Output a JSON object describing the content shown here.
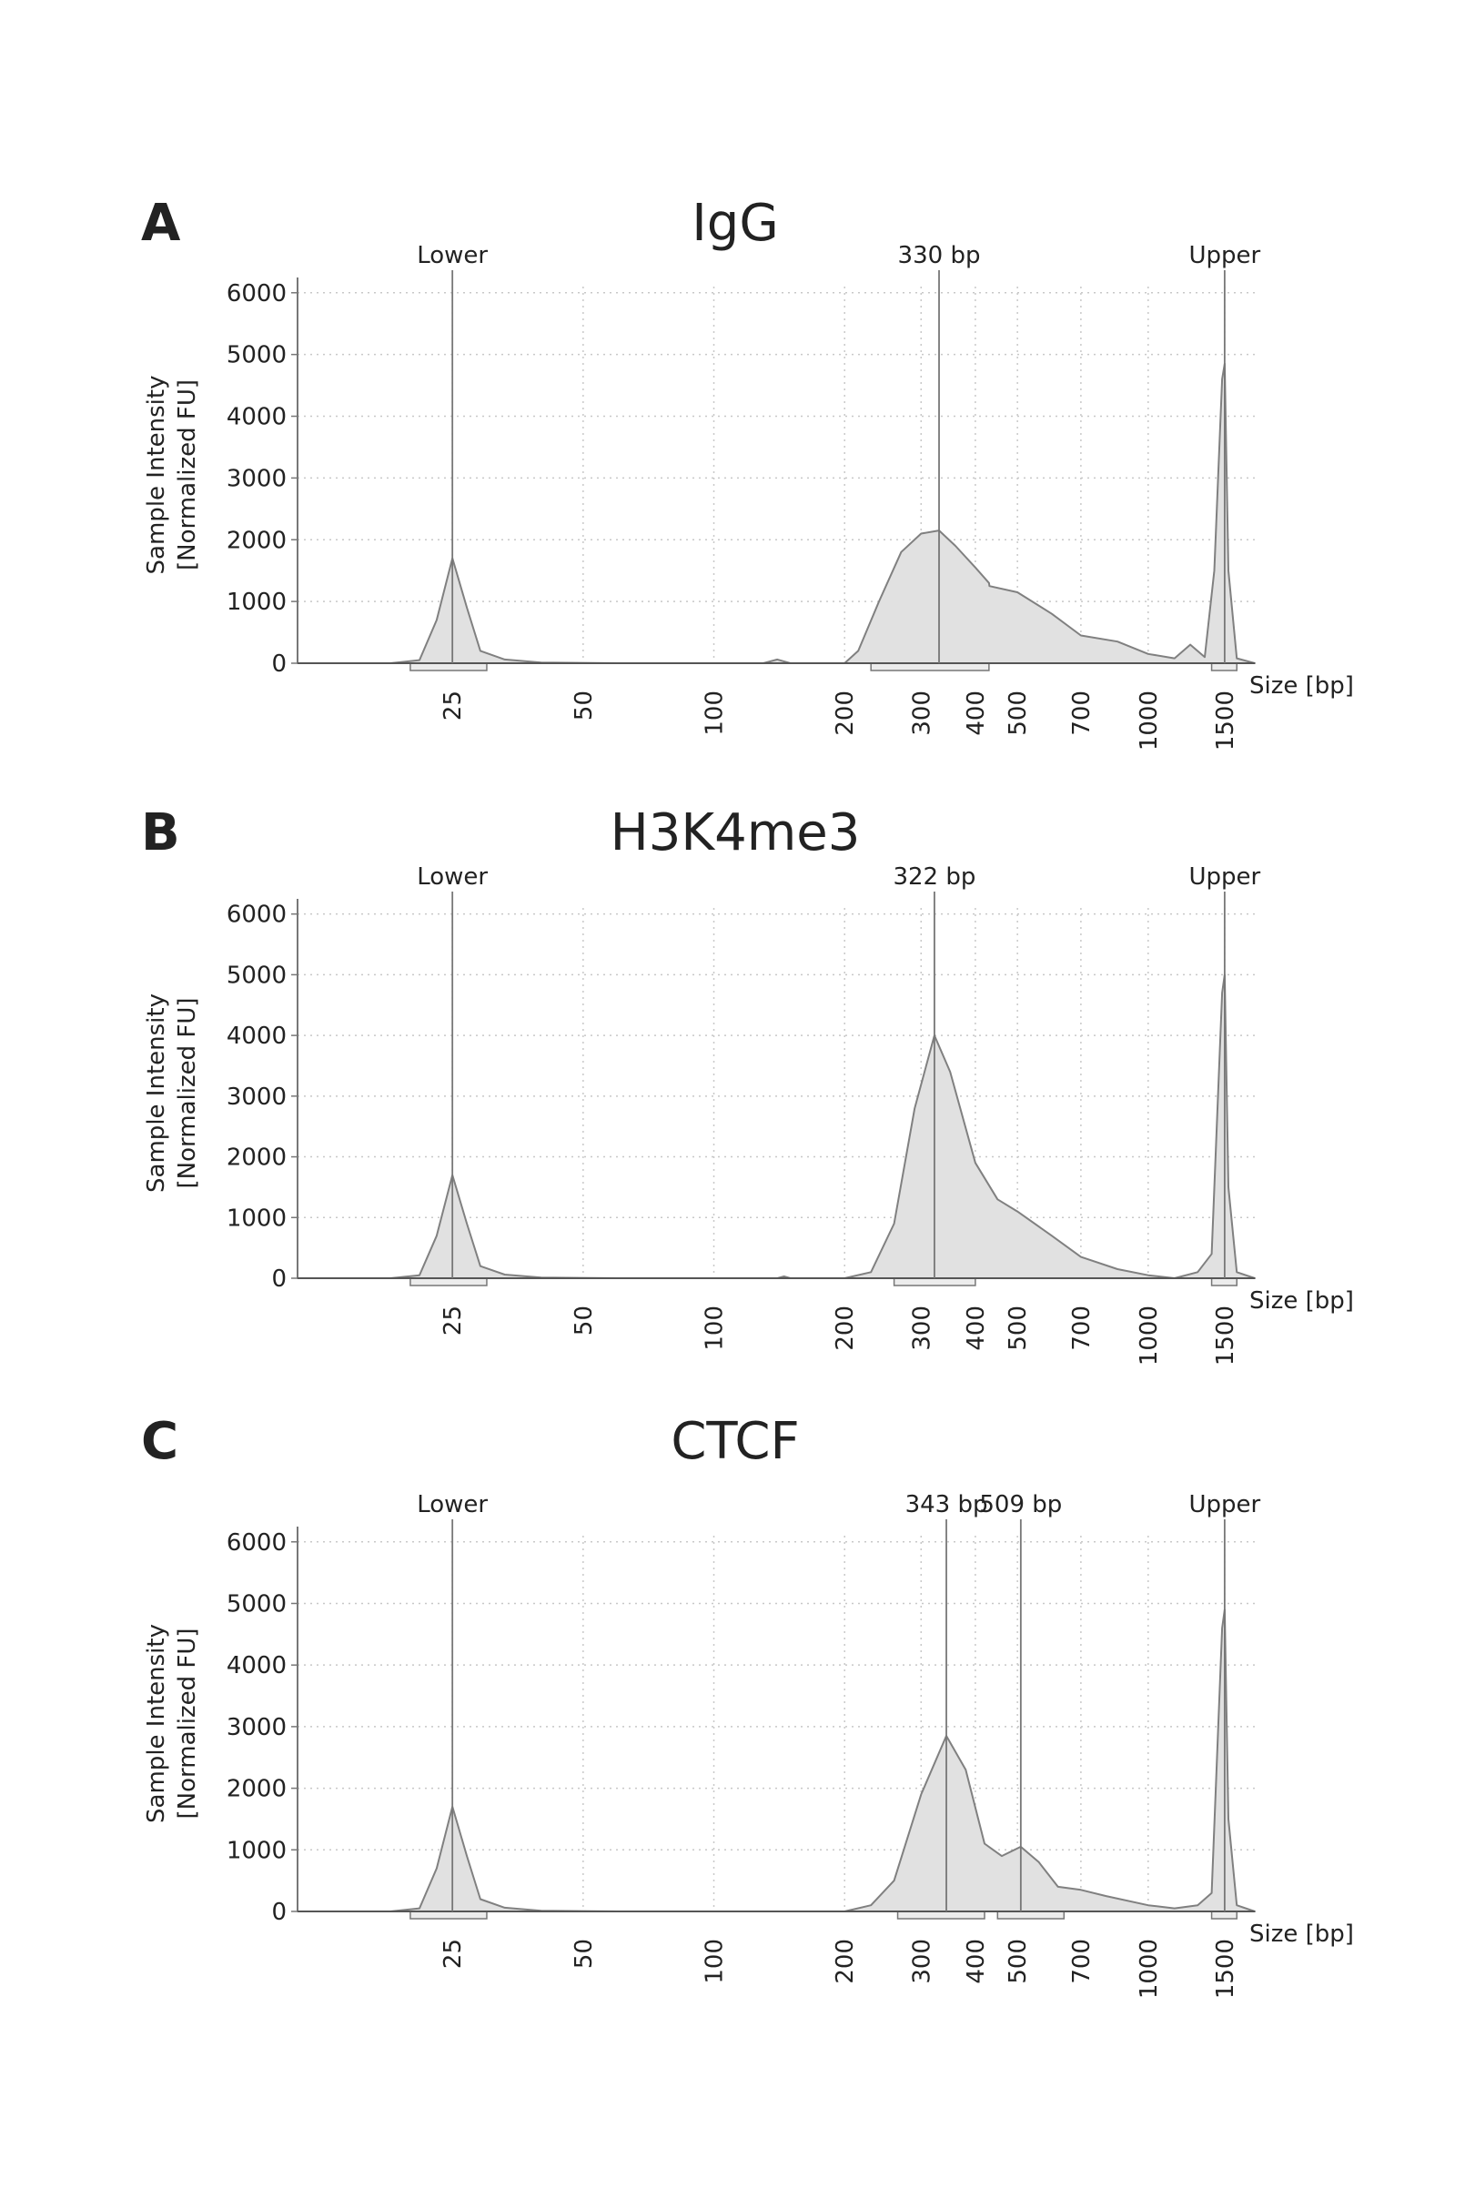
{
  "chart_data": [
    {
      "type": "area",
      "panel_label": "A",
      "title": "IgG",
      "ylabel": [
        "Sample Intensity",
        "[Normalized FU]"
      ],
      "xlabel": "Size [bp]",
      "x_scale": "log",
      "xlim": [
        11,
        1760
      ],
      "ylim": [
        0,
        6100
      ],
      "xticks": [
        25,
        50,
        100,
        200,
        300,
        400,
        500,
        700,
        1000,
        1500
      ],
      "yticks": [
        0,
        1000,
        2000,
        3000,
        4000,
        5000,
        6000
      ],
      "grid": true,
      "color": "#e1e1e1",
      "line_color": "#808080",
      "x": [
        11,
        18,
        21,
        23,
        25,
        27,
        29,
        33,
        40,
        60,
        130,
        140,
        150,
        160,
        200,
        215,
        240,
        270,
        300,
        330,
        360,
        400,
        430,
        431,
        500,
        600,
        700,
        850,
        1000,
        1150,
        1250,
        1350,
        1420,
        1480,
        1500,
        1530,
        1600,
        1760
      ],
      "values": [
        0,
        0,
        50,
        700,
        1700,
        900,
        200,
        60,
        10,
        0,
        0,
        60,
        0,
        0,
        0,
        200,
        1000,
        1800,
        2100,
        2150,
        1900,
        1550,
        1300,
        1250,
        1150,
        800,
        450,
        350,
        150,
        80,
        300,
        100,
        1500,
        4600,
        4850,
        1500,
        80,
        0
      ],
      "peaks": [
        {
          "label": "Lower",
          "x": 25
        },
        {
          "label": "330 bp",
          "x": 330
        },
        {
          "label": "Upper",
          "x": 1500
        }
      ],
      "regions": [
        [
          20,
          30
        ],
        [
          230,
          430
        ],
        [
          1400,
          1600
        ]
      ]
    },
    {
      "type": "area",
      "panel_label": "B",
      "title": "H3K4me3",
      "ylabel": [
        "Sample Intensity",
        "[Normalized FU]"
      ],
      "xlabel": "Size [bp]",
      "x_scale": "log",
      "xlim": [
        11,
        1760
      ],
      "ylim": [
        0,
        6100
      ],
      "xticks": [
        25,
        50,
        100,
        200,
        300,
        400,
        500,
        700,
        1000,
        1500
      ],
      "yticks": [
        0,
        1000,
        2000,
        3000,
        4000,
        5000,
        6000
      ],
      "grid": true,
      "color": "#e1e1e1",
      "line_color": "#808080",
      "x": [
        11,
        18,
        21,
        23,
        25,
        27,
        29,
        33,
        40,
        60,
        140,
        145,
        150,
        200,
        230,
        260,
        290,
        322,
        350,
        400,
        450,
        500,
        600,
        700,
        850,
        1000,
        1150,
        1300,
        1400,
        1480,
        1500,
        1530,
        1600,
        1760
      ],
      "values": [
        0,
        0,
        50,
        700,
        1700,
        900,
        200,
        60,
        10,
        0,
        0,
        30,
        0,
        0,
        100,
        900,
        2800,
        4000,
        3400,
        1900,
        1300,
        1100,
        700,
        350,
        150,
        50,
        0,
        100,
        400,
        4700,
        5000,
        1500,
        100,
        0
      ],
      "peaks": [
        {
          "label": "Lower",
          "x": 25
        },
        {
          "label": "322 bp",
          "x": 322
        },
        {
          "label": "Upper",
          "x": 1500
        }
      ],
      "regions": [
        [
          20,
          30
        ],
        [
          260,
          400
        ],
        [
          1400,
          1600
        ]
      ]
    },
    {
      "type": "area",
      "panel_label": "C",
      "title": "CTCF",
      "ylabel": [
        "Sample Intensity",
        "[Normalized FU]"
      ],
      "xlabel": "Size [bp]",
      "x_scale": "log",
      "xlim": [
        11,
        1760
      ],
      "ylim": [
        0,
        6100
      ],
      "xticks": [
        25,
        50,
        100,
        200,
        300,
        400,
        500,
        700,
        1000,
        1500
      ],
      "yticks": [
        0,
        1000,
        2000,
        3000,
        4000,
        5000,
        6000
      ],
      "grid": true,
      "color": "#e1e1e1",
      "line_color": "#808080",
      "x": [
        11,
        18,
        21,
        23,
        25,
        27,
        29,
        33,
        40,
        60,
        200,
        230,
        260,
        300,
        343,
        380,
        420,
        460,
        509,
        560,
        620,
        700,
        800,
        1000,
        1150,
        1300,
        1400,
        1480,
        1500,
        1530,
        1600,
        1760
      ],
      "values": [
        0,
        0,
        50,
        700,
        1700,
        900,
        200,
        60,
        10,
        0,
        0,
        100,
        500,
        1900,
        2850,
        2300,
        1100,
        900,
        1050,
        800,
        400,
        350,
        250,
        100,
        50,
        100,
        300,
        4600,
        4900,
        1500,
        100,
        0
      ],
      "peaks": [
        {
          "label": "Lower",
          "x": 25
        },
        {
          "label": "343 bp",
          "x": 343
        },
        {
          "label": "509 bp",
          "x": 509
        },
        {
          "label": "Upper",
          "x": 1500
        }
      ],
      "regions": [
        [
          20,
          30
        ],
        [
          265,
          420
        ],
        [
          450,
          640
        ],
        [
          1400,
          1600
        ]
      ]
    }
  ]
}
